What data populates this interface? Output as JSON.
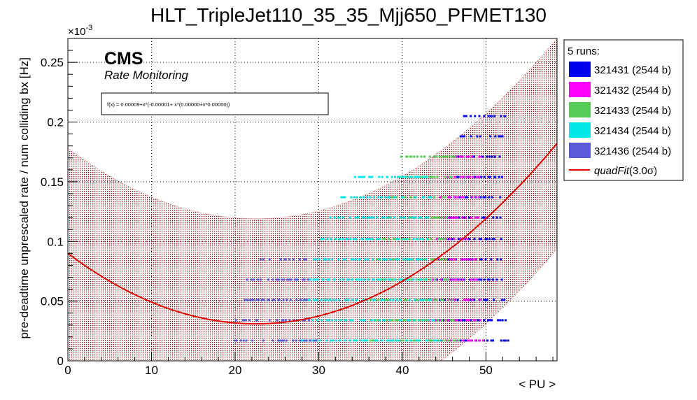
{
  "chart_data": {
    "type": "scatter",
    "title": "HLT_TripleJet110_35_35_Mjj650_PFMET130",
    "xlabel": "< PU >",
    "ylabel": "pre-deadtime unprescaled rate / num colliding bx [Hz]",
    "y_exponent_label": "×10",
    "y_exponent_power": "-3",
    "xlim": [
      0,
      58.5
    ],
    "ylim": [
      0,
      0.27
    ],
    "x_ticks": [
      0,
      10,
      20,
      30,
      40,
      50
    ],
    "y_ticks": [
      0,
      0.05,
      0.1,
      0.15,
      0.2,
      0.25
    ],
    "x_tick_labels": [
      "0",
      "10",
      "20",
      "30",
      "40",
      "50"
    ],
    "y_tick_labels": [
      "0",
      "0.05",
      "0.1",
      "0.15",
      "0.2",
      "0.25"
    ],
    "grid": true,
    "legend_position": "right-outside",
    "legend_header": "5 runs:",
    "cms_label": "CMS",
    "cms_sublabel": "Rate Monitoring",
    "fit_formula": "f(x) = 0.00009+x*(-0.00001+ x*(0.00000+x*0.00000))",
    "fit": {
      "name": "quadFit",
      "legend_label": "quadFit(3.0σ)",
      "label_main": "quadFit",
      "label_paren": "(3.0σ)",
      "color": "#e00000",
      "a": 0.09,
      "min_x": 22.5,
      "min_y": 0.031,
      "x_range": [
        0,
        58.5
      ],
      "band_half_width": 0.088
    },
    "series": [
      {
        "name": "321431 (2544 b)",
        "color": "#0000ee",
        "levels": [
          0.017,
          0.034,
          0.051,
          0.068,
          0.085,
          0.102,
          0.12,
          0.137,
          0.154,
          0.171,
          0.188,
          0.205
        ],
        "x_range": [
          44,
          53
        ]
      },
      {
        "name": "321432 (2544 b)",
        "color": "#ff00ff",
        "levels": [
          0.017,
          0.034,
          0.051,
          0.068,
          0.085,
          0.102,
          0.12,
          0.137,
          0.154,
          0.171
        ],
        "x_range": [
          43,
          50
        ]
      },
      {
        "name": "321433 (2544 b)",
        "color": "#55cc55",
        "levels": [
          0.017,
          0.034,
          0.051,
          0.068,
          0.085,
          0.102,
          0.12,
          0.137,
          0.154,
          0.171
        ],
        "x_range": [
          36,
          47
        ]
      },
      {
        "name": "321434 (2544 b)",
        "color": "#00e8e8",
        "levels": [
          0.017,
          0.034,
          0.051,
          0.068,
          0.085,
          0.102,
          0.12,
          0.137,
          0.154
        ],
        "x_range": [
          28,
          45
        ]
      },
      {
        "name": "321436 (2544 b)",
        "color": "#5a5ad8",
        "levels": [
          0.017,
          0.034,
          0.051,
          0.068,
          0.085
        ],
        "x_range": [
          20,
          30
        ]
      }
    ]
  }
}
